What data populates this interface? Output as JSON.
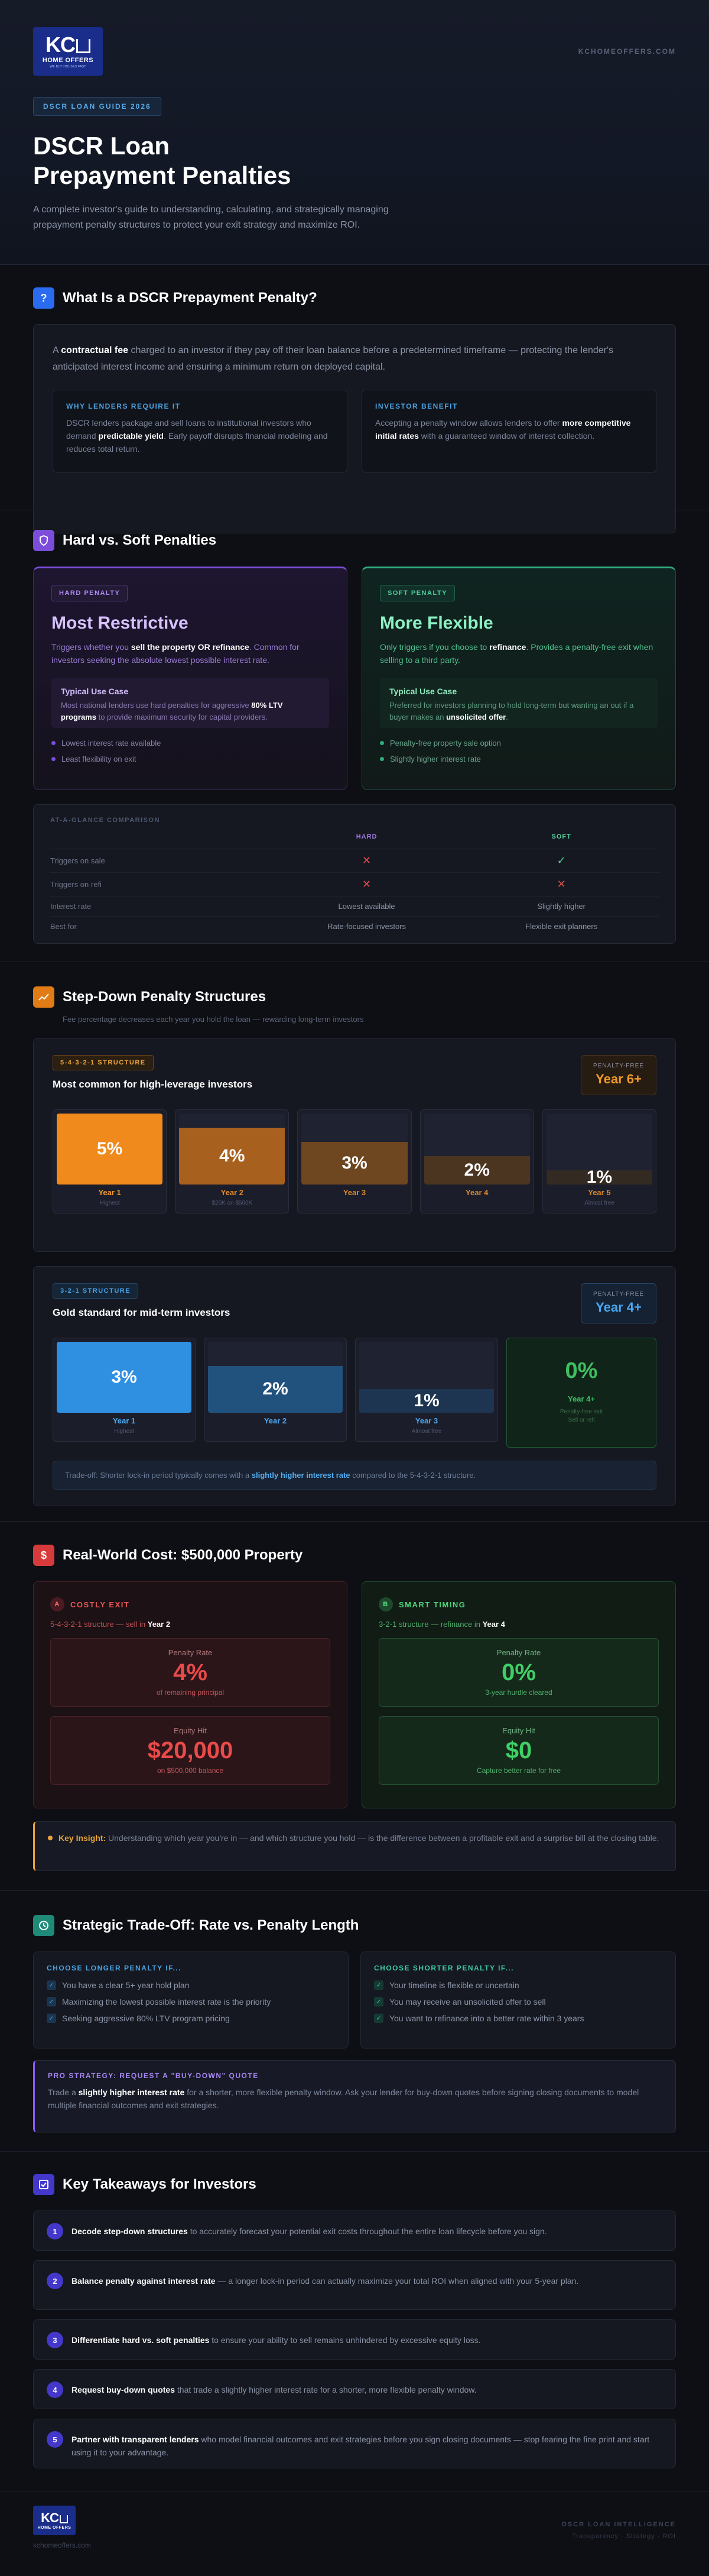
{
  "header": {
    "logo_kc": "KC",
    "logo_sub": "HOME OFFERS",
    "logo_tag": "WE BUY HOUSES FAST",
    "domain": "KCHOMEOFFERS.COM",
    "pill": "DSCR LOAN GUIDE 2026",
    "title_1": "DSCR Loan",
    "title_2": "Prepayment Penalties",
    "intro": "A complete investor's guide to understanding, calculating, and strategically managing prepayment penalty structures to protect your exit strategy and maximize ROI."
  },
  "s1": {
    "icon": "?",
    "title": "What Is a DSCR Prepayment Penalty?",
    "p_a": "A ",
    "p_b": "contractual fee",
    "p_c": " charged to an investor if they pay off their loan balance before a predetermined timeframe — protecting the lender's anticipated interest income and ensuring a minimum return on deployed capital.",
    "why_label": "WHY LENDERS REQUIRE IT",
    "why_a": "DSCR lenders package and sell loans to institutional investors who demand ",
    "why_b": "predictable yield",
    "why_c": ". Early payoff disrupts financial modeling and reduces total return.",
    "benefit_label": "INVESTOR BENEFIT",
    "benefit_a": "Accepting a penalty window allows lenders to offer ",
    "benefit_b": "more competitive initial rates",
    "benefit_c": " with a guaranteed window of interest collection."
  },
  "s2": {
    "title": "Hard vs. Soft Penalties",
    "hard": {
      "tag": "HARD PENALTY",
      "title": "Most Restrictive",
      "desc_a": "Triggers whether you ",
      "desc_b": "sell the property OR refinance",
      "desc_c": ". Common for investors seeking the absolute lowest possible interest rate.",
      "use_title": "Typical Use Case",
      "use_a": "Most national lenders use hard penalties for aggressive ",
      "use_b": "80% LTV programs",
      "use_c": " to provide maximum security for capital providers.",
      "bullets": [
        "Lowest interest rate available",
        "Least flexibility on exit"
      ]
    },
    "soft": {
      "tag": "SOFT PENALTY",
      "title": "More Flexible",
      "desc_a": "Only triggers if you choose to ",
      "desc_b": "refinance",
      "desc_c": ". Provides a penalty-free exit when selling to a third party.",
      "use_title": "Typical Use Case",
      "use_a": "Preferred for investors planning to hold long-term but wanting an out if a buyer makes an ",
      "use_b": "unsolicited offer",
      "use_c": ".",
      "bullets": [
        "Penalty-free property sale option",
        "Slightly higher interest rate"
      ]
    },
    "comparison": {
      "label": "AT-A-GLANCE COMPARISON",
      "col_hard": "HARD",
      "col_soft": "SOFT",
      "rows": [
        {
          "k": "Triggers on sale",
          "h": "✕",
          "s": "✓"
        },
        {
          "k": "Triggers on refi",
          "h": "✕",
          "s": "✕"
        },
        {
          "k": "Interest rate",
          "h": "Lowest available",
          "s": "Slightly higher"
        },
        {
          "k": "Best for",
          "h": "Rate-focused investors",
          "s": "Flexible exit planners"
        }
      ]
    }
  },
  "s3": {
    "title": "Step-Down Penalty Structures",
    "sub": "Fee percentage decreases each year you hold the loan — rewarding long-term investors",
    "a": {
      "tag": "5-4-3-2-1 STRUCTURE",
      "title": "Most common for high-leverage investors",
      "pf_label": "PENALTY-FREE",
      "pf_value": "Year 6+",
      "bars": [
        {
          "v": "5%",
          "pct": 100,
          "yr": "Year 1",
          "nt": "Highest",
          "c": "#f08a1c",
          "t": "#f39a30"
        },
        {
          "v": "4%",
          "pct": 80,
          "yr": "Year 2",
          "nt": "$20K on $500K",
          "c": "#a7601e",
          "t": "#e08a2a"
        },
        {
          "v": "3%",
          "pct": 60,
          "yr": "Year 3",
          "nt": "",
          "c": "#6e4620",
          "t": "#d9872b"
        },
        {
          "v": "2%",
          "pct": 40,
          "yr": "Year 4",
          "nt": "",
          "c": "#4b3521",
          "t": "#d9872b"
        },
        {
          "v": "1%",
          "pct": 20,
          "yr": "Year 5",
          "nt": "Almost free",
          "c": "#332a22",
          "t": "#d9872b"
        }
      ]
    },
    "b": {
      "tag": "3-2-1 STRUCTURE",
      "title": "Gold standard for mid-term investors",
      "pf_label": "PENALTY-FREE",
      "pf_value": "Year 4+",
      "bars": [
        {
          "v": "3%",
          "pct": 100,
          "yr": "Year 1",
          "nt": "Highest",
          "c": "#2f8fe0",
          "t": "#4aa6f0"
        },
        {
          "v": "2%",
          "pct": 66,
          "yr": "Year 2",
          "nt": "",
          "c": "#21527e",
          "t": "#4aa6f0"
        },
        {
          "v": "1%",
          "pct": 33,
          "yr": "Year 3",
          "nt": "Almost free",
          "c": "#1d3550",
          "t": "#4aa6f0"
        }
      ],
      "zero_v": "0%",
      "zero_yr": "Year 4+",
      "zero_n1": "Penalty-free exit",
      "zero_n2": "Sell or refi",
      "trade_a": "Trade-off: Shorter lock-in period typically comes with a ",
      "trade_b": "slightly higher interest rate",
      "trade_c": " compared to the 5-4-3-2-1 structure."
    }
  },
  "s4": {
    "title": "Real-World Cost: $500,000 Property",
    "bad": {
      "letter": "A",
      "label": "COSTLY EXIT",
      "sub_a": "5-4-3-2-1 structure — sell in ",
      "sub_b": "Year 2",
      "k1": "Penalty Rate",
      "v1": "4%",
      "d1": "of remaining principal",
      "k2": "Equity Hit",
      "v2": "$20,000",
      "d2": "on $500,000 balance"
    },
    "good": {
      "letter": "B",
      "label": "SMART TIMING",
      "sub_a": "3-2-1 structure — refinance in ",
      "sub_b": "Year 4",
      "k1": "Penalty Rate",
      "v1": "0%",
      "d1": "3-year hurdle cleared",
      "k2": "Equity Hit",
      "v2": "$0",
      "d2": "Capture better rate for free"
    },
    "insight_a": "Key Insight:",
    "insight_b": " Understanding which year you're in — and which structure you hold — is the difference between a profitable exit and a surprise bill at the closing table."
  },
  "s5": {
    "title": "Strategic Trade-Off: Rate vs. Penalty Length",
    "longer_label": "CHOOSE LONGER PENALTY IF...",
    "longer": [
      "You have a clear 5+ year hold plan",
      "Maximizing the lowest possible interest rate is the priority",
      "Seeking aggressive 80% LTV program pricing"
    ],
    "shorter_label": "CHOOSE SHORTER PENALTY IF...",
    "shorter": [
      "Your timeline is flexible or uncertain",
      "You may receive an unsolicited offer to sell",
      "You want to refinance into a better rate within 3 years"
    ],
    "pro_label": "PRO STRATEGY: REQUEST A \"BUY-DOWN\" QUOTE",
    "pro_a": "Trade a ",
    "pro_b": "slightly higher interest rate",
    "pro_c": " for a shorter, more flexible penalty window. Ask your lender for buy-down quotes before signing closing documents to model multiple financial outcomes and exit strategies."
  },
  "s6": {
    "title": "Key Takeaways for Investors",
    "items": [
      {
        "n": "1",
        "b": "Decode step-down structures",
        "t": " to accurately forecast your potential exit costs throughout the entire loan lifecycle before you sign."
      },
      {
        "n": "2",
        "b": "Balance penalty against interest rate",
        "t": " — a longer lock-in period can actually maximize your total ROI when aligned with your 5-year plan."
      },
      {
        "n": "3",
        "b": "Differentiate hard vs. soft penalties",
        "t": " to ensure your ability to sell remains unhindered by excessive equity loss."
      },
      {
        "n": "4",
        "b": "Request buy-down quotes",
        "t": " that trade a slightly higher interest rate for a shorter, more flexible penalty window."
      },
      {
        "n": "5",
        "b": "Partner with transparent lenders",
        "t": " who model financial outcomes and exit strategies before you sign closing documents — stop fearing the fine print and start using it to your advantage."
      }
    ]
  },
  "footer": {
    "site": "kchomeoffers.com",
    "right_a": "DSCR LOAN INTELLIGENCE",
    "right_b": "Transparency · Strategy · ROI"
  },
  "colors": {
    "accent_blue": "#2b6bf0",
    "hard_purple": "#7c4ddb",
    "soft_green": "#2fae7c",
    "warn_orange": "#e8a33a",
    "danger_red": "#ea4a4a"
  }
}
